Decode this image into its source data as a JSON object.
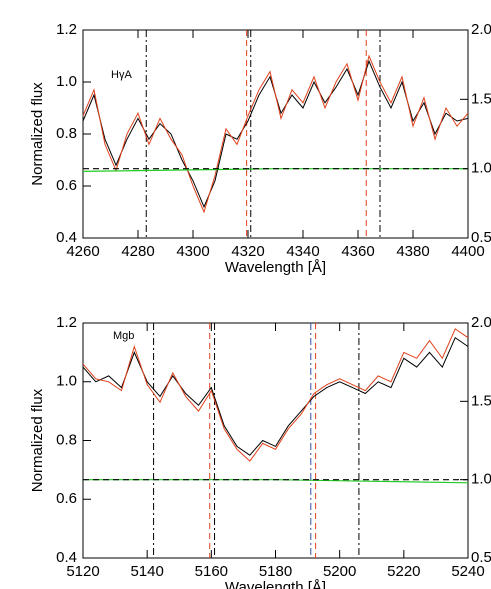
{
  "chart_data": [
    {
      "type": "line",
      "annotation": "HγA",
      "xlabel": "Wavelength [Å]",
      "ylabel": "Normalized flux",
      "xlim": [
        4260,
        4400
      ],
      "xticks": [
        4260,
        4280,
        4300,
        4320,
        4340,
        4360,
        4380,
        4400
      ],
      "ylim": [
        0.4,
        1.2
      ],
      "yticks": [
        0.4,
        0.6,
        0.8,
        {
          "value": 1,
          "label": "1.0"
        },
        1.2
      ],
      "y2lim": [
        0.5,
        2.0
      ],
      "y2ticks": [
        0.5,
        {
          "value": 1,
          "label": "1.0"
        },
        1.5,
        {
          "value": 2,
          "label": "2.0"
        }
      ],
      "x": [
        4260,
        4264,
        4268,
        4272,
        4276,
        4280,
        4284,
        4288,
        4292,
        4296,
        4300,
        4304,
        4308,
        4312,
        4316,
        4320,
        4324,
        4328,
        4332,
        4336,
        4340,
        4344,
        4348,
        4352,
        4356,
        4360,
        4364,
        4368,
        4372,
        4376,
        4380,
        4384,
        4388,
        4392,
        4396,
        4400
      ],
      "series": [
        {
          "color": "#000000",
          "values": [
            0.85,
            0.95,
            0.78,
            0.68,
            0.78,
            0.86,
            0.78,
            0.84,
            0.8,
            0.7,
            0.62,
            0.52,
            0.62,
            0.8,
            0.78,
            0.85,
            0.95,
            1.02,
            0.88,
            0.95,
            0.9,
            1.0,
            0.92,
            0.98,
            1.05,
            0.95,
            1.08,
            0.98,
            0.9,
            1.0,
            0.85,
            0.92,
            0.8,
            0.88,
            0.85,
            0.86
          ]
        },
        {
          "color": "#e0401a",
          "values": [
            0.87,
            0.97,
            0.76,
            0.66,
            0.8,
            0.88,
            0.76,
            0.86,
            0.78,
            0.72,
            0.6,
            0.5,
            0.64,
            0.82,
            0.76,
            0.87,
            0.97,
            1.04,
            0.86,
            0.97,
            0.92,
            1.02,
            0.9,
            1.0,
            1.07,
            0.93,
            1.1,
            1.0,
            0.92,
            1.02,
            0.83,
            0.94,
            0.78,
            0.9,
            0.83,
            0.88
          ]
        },
        {
          "color": "#22cc22",
          "axis": "y2",
          "x": [
            4260,
            4330,
            4400
          ],
          "values": [
            0.98,
            1.0,
            1.0
          ]
        },
        {
          "color": "#000000",
          "axis": "y2",
          "dashed": true,
          "x": [
            4260,
            4400
          ],
          "values": [
            1.0,
            1.0
          ]
        }
      ],
      "vlines": [
        {
          "x": 4283,
          "color": "#000000",
          "style": "dashdot"
        },
        {
          "x": 4321,
          "color": "#000000",
          "style": "dashdot"
        },
        {
          "x": 4368,
          "color": "#000000",
          "style": "dashdot"
        },
        {
          "x": 4319.5,
          "color": "#e0401a",
          "style": "dashed"
        },
        {
          "x": 4363,
          "color": "#e0401a",
          "style": "dashed"
        }
      ]
    },
    {
      "type": "line",
      "annotation": "Mgb",
      "xlabel": "Wavelength [Å]",
      "ylabel": "Normalized flux",
      "xlim": [
        5120,
        5240
      ],
      "xticks": [
        5120,
        5140,
        5160,
        5180,
        5200,
        5220,
        5240
      ],
      "ylim": [
        0.4,
        1.2
      ],
      "yticks": [
        0.4,
        0.6,
        0.8,
        {
          "value": 1,
          "label": "1.0"
        },
        1.2
      ],
      "y2lim": [
        0.5,
        2.0
      ],
      "y2ticks": [
        0.5,
        {
          "value": 1,
          "label": "1.0"
        },
        1.5,
        {
          "value": 2,
          "label": "2.0"
        }
      ],
      "x": [
        5120,
        5124,
        5128,
        5132,
        5136,
        5140,
        5144,
        5148,
        5152,
        5156,
        5160,
        5164,
        5168,
        5172,
        5176,
        5180,
        5184,
        5188,
        5192,
        5196,
        5200,
        5204,
        5208,
        5212,
        5216,
        5220,
        5224,
        5228,
        5232,
        5236,
        5240
      ],
      "series": [
        {
          "color": "#000000",
          "values": [
            1.05,
            1.0,
            1.02,
            0.98,
            1.1,
            1.0,
            0.95,
            1.02,
            0.96,
            0.92,
            0.98,
            0.85,
            0.78,
            0.75,
            0.8,
            0.78,
            0.85,
            0.9,
            0.95,
            0.98,
            1.0,
            0.98,
            0.96,
            1.0,
            0.98,
            1.08,
            1.05,
            1.1,
            1.05,
            1.15,
            1.12
          ]
        },
        {
          "color": "#e0401a",
          "values": [
            1.06,
            1.01,
            1.0,
            0.97,
            1.12,
            0.99,
            0.93,
            1.03,
            0.95,
            0.9,
            0.97,
            0.84,
            0.77,
            0.73,
            0.79,
            0.77,
            0.84,
            0.89,
            0.96,
            0.99,
            1.01,
            0.99,
            0.97,
            1.02,
            1.0,
            1.1,
            1.08,
            1.14,
            1.08,
            1.18,
            1.15
          ]
        },
        {
          "color": "#22cc22",
          "axis": "y2",
          "x": [
            5120,
            5180,
            5240
          ],
          "values": [
            1.0,
            1.0,
            0.98
          ]
        },
        {
          "color": "#000000",
          "axis": "y2",
          "dashed": true,
          "x": [
            5120,
            5240
          ],
          "values": [
            1.0,
            1.0
          ]
        }
      ],
      "vlines": [
        {
          "x": 5142,
          "color": "#000000",
          "style": "dashdot"
        },
        {
          "x": 5161,
          "color": "#000000",
          "style": "dashdot"
        },
        {
          "x": 5191,
          "color": "#3050a0",
          "style": "dashdot"
        },
        {
          "x": 5206,
          "color": "#000000",
          "style": "dashdot"
        },
        {
          "x": 5159.5,
          "color": "#e0401a",
          "style": "dashed"
        },
        {
          "x": 5192.5,
          "color": "#e0401a",
          "style": "dashed"
        }
      ]
    }
  ]
}
